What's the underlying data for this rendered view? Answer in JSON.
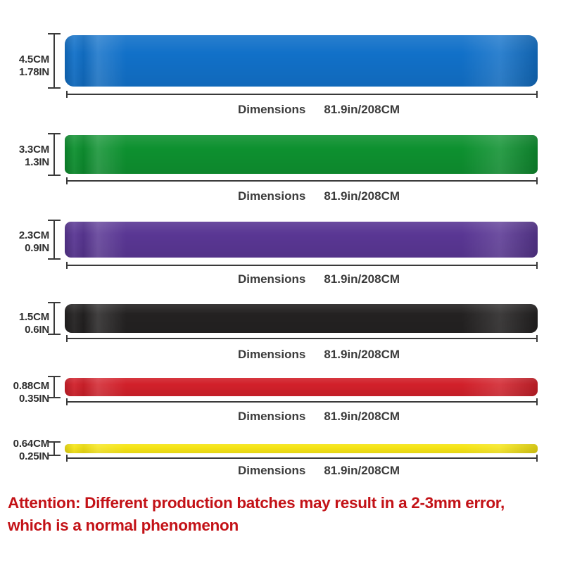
{
  "rows": [
    {
      "color_name": "blue",
      "band_color": "#1271C9",
      "width_cm": "4.5CM",
      "width_in": "1.78IN",
      "dimensions_label": "Dimensions",
      "dimensions_value": "81.9in/208CM"
    },
    {
      "color_name": "green",
      "band_color": "#0E9130",
      "width_cm": "3.3CM",
      "width_in": "1.3IN",
      "dimensions_label": "Dimensions",
      "dimensions_value": "81.9in/208CM"
    },
    {
      "color_name": "purple",
      "band_color": "#5A3794",
      "width_cm": "2.3CM",
      "width_in": "0.9IN",
      "dimensions_label": "Dimensions",
      "dimensions_value": "81.9in/208CM"
    },
    {
      "color_name": "black",
      "band_color": "#242222",
      "width_cm": "1.5CM",
      "width_in": "0.6IN",
      "dimensions_label": "Dimensions",
      "dimensions_value": "81.9in/208CM"
    },
    {
      "color_name": "red",
      "band_color": "#D2212B",
      "width_cm": "0.88CM",
      "width_in": "0.35IN",
      "dimensions_label": "Dimensions",
      "dimensions_value": "81.9in/208CM"
    },
    {
      "color_name": "yellow",
      "band_color": "#F6E516",
      "width_cm": "0.64CM",
      "width_in": "0.25IN",
      "dimensions_label": "Dimensions",
      "dimensions_value": "81.9in/208CM"
    }
  ],
  "attention": {
    "line1": "Attention: Different production batches may result in a 2-3mm error,",
    "line2": "which is a normal phenomenon",
    "color": "#C31217"
  },
  "annotation_colors": {
    "measure_marks": "#3a3a3a",
    "width_labels": "#2e2e2e",
    "dimensions_text": "#3b3b3b"
  }
}
